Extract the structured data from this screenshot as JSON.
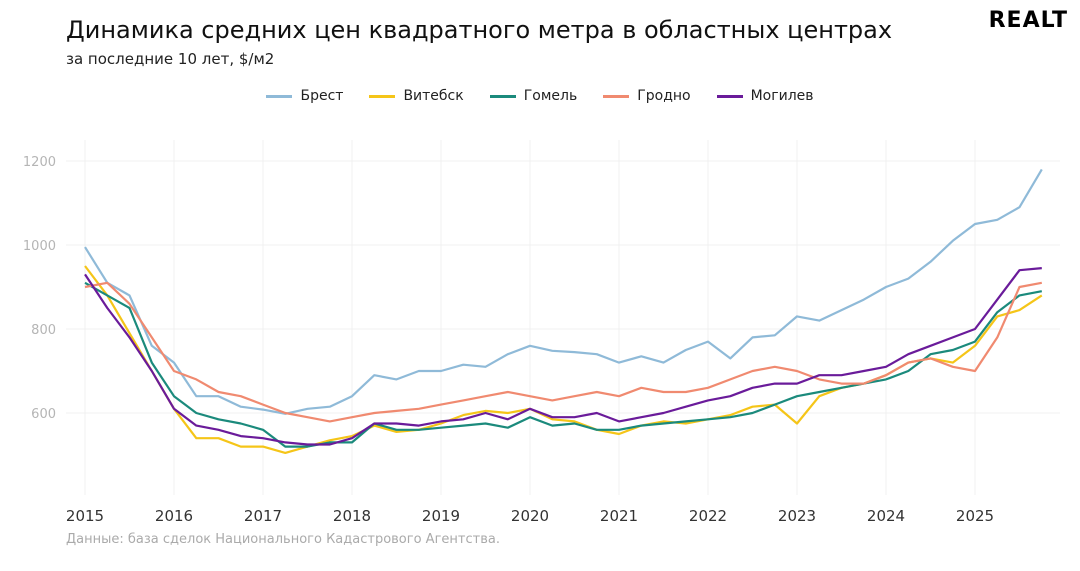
{
  "header": {
    "title": "Динамика средних цен квадратного метра в областных центрах",
    "subtitle": "за последние 10 лет, $/м2",
    "logo": "REALT"
  },
  "caption": "Данные: база сделок Национального Кадастрового Агентства.",
  "chart_data": {
    "type": "line",
    "title": "Динамика средних цен квадратного метра в областных центрах",
    "subtitle": "за последние 10 лет, $/м2",
    "xlabel": "",
    "ylabel": "",
    "xlim": [
      2014.8,
      2026.0
    ],
    "ylim": [
      480,
      1230
    ],
    "grid": true,
    "legend": "top",
    "xticks": [
      "2015",
      "2016",
      "2017",
      "2018",
      "2019",
      "2020",
      "2021",
      "2022",
      "2023",
      "2024",
      "2025"
    ],
    "yticks": [
      "600",
      "800",
      "1000",
      "1200"
    ],
    "x_start": 2015,
    "x_step": 0.25,
    "series": [
      {
        "name": "Брест",
        "color": "#8fbad8",
        "values": [
          995,
          910,
          880,
          760,
          720,
          640,
          640,
          615,
          608,
          598,
          610,
          615,
          640,
          690,
          680,
          700,
          700,
          715,
          710,
          740,
          760,
          748,
          745,
          740,
          720,
          735,
          720,
          750,
          770,
          730,
          780,
          785,
          830,
          820,
          845,
          870,
          900,
          920,
          960,
          1010,
          1050,
          1060,
          1090,
          1180
        ]
      },
      {
        "name": "Витебск",
        "color": "#f5c518",
        "values": [
          950,
          880,
          790,
          700,
          610,
          540,
          540,
          520,
          520,
          505,
          520,
          535,
          545,
          570,
          555,
          560,
          575,
          595,
          605,
          600,
          610,
          585,
          580,
          560,
          550,
          570,
          580,
          575,
          585,
          595,
          615,
          620,
          575,
          640,
          660,
          670,
          690,
          720,
          730,
          720,
          760,
          830,
          845,
          880
        ]
      },
      {
        "name": "Гомель",
        "color": "#1b8a7c",
        "values": [
          910,
          880,
          850,
          720,
          640,
          600,
          585,
          575,
          560,
          520,
          520,
          530,
          530,
          575,
          560,
          560,
          565,
          570,
          575,
          565,
          590,
          570,
          575,
          560,
          560,
          570,
          575,
          580,
          585,
          590,
          600,
          620,
          640,
          650,
          660,
          670,
          680,
          700,
          740,
          750,
          770,
          840,
          880,
          890
        ]
      },
      {
        "name": "Гродно",
        "color": "#f08a70",
        "values": [
          900,
          910,
          860,
          780,
          700,
          680,
          650,
          640,
          620,
          600,
          590,
          580,
          590,
          600,
          605,
          610,
          620,
          630,
          640,
          650,
          640,
          630,
          640,
          650,
          640,
          660,
          650,
          650,
          660,
          680,
          700,
          710,
          700,
          680,
          670,
          670,
          690,
          720,
          730,
          710,
          700,
          780,
          900,
          910
        ]
      },
      {
        "name": "Могилев",
        "color": "#6a1b9a",
        "values": [
          930,
          850,
          780,
          700,
          610,
          570,
          560,
          545,
          540,
          530,
          525,
          525,
          540,
          575,
          575,
          570,
          580,
          585,
          600,
          585,
          610,
          590,
          590,
          600,
          580,
          590,
          600,
          615,
          630,
          640,
          660,
          670,
          670,
          690,
          690,
          700,
          710,
          740,
          760,
          780,
          800,
          870,
          940,
          945
        ]
      }
    ]
  }
}
